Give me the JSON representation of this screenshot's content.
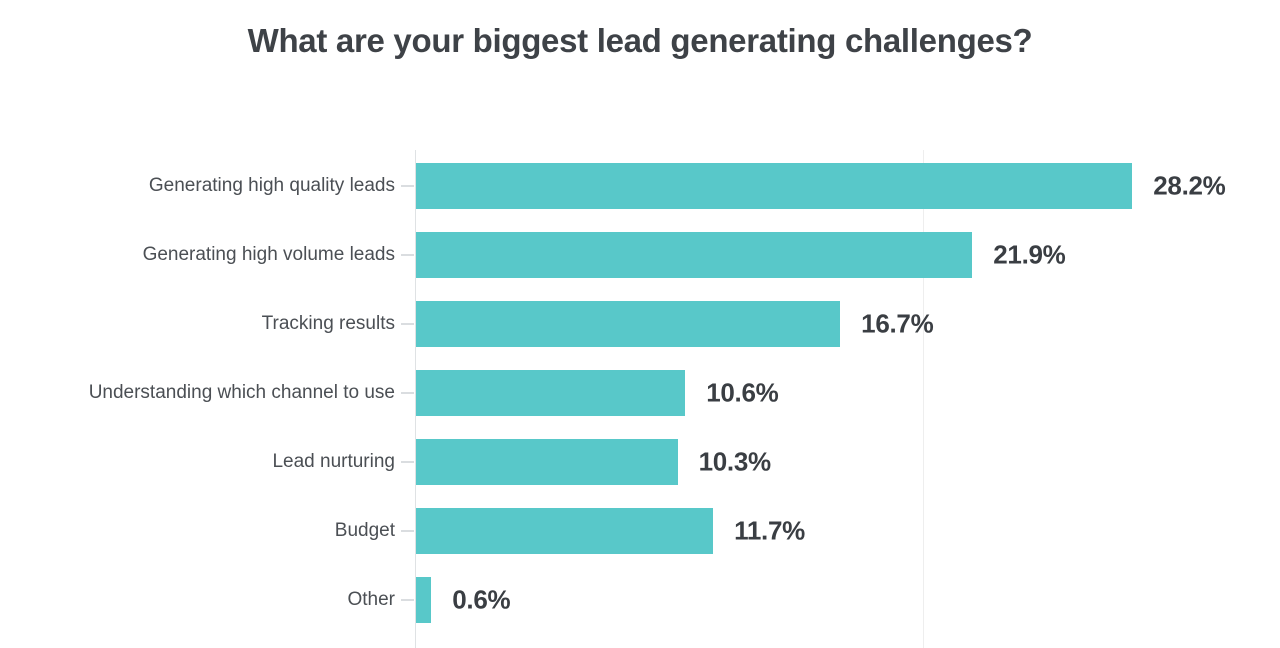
{
  "chart_data": {
    "type": "bar",
    "orientation": "horizontal",
    "title": "What are your biggest lead generating challenges?",
    "categories": [
      "Generating high quality leads",
      "Generating high volume leads",
      "Tracking results",
      "Understanding which channel to use",
      "Lead nurturing",
      "Budget",
      "Other"
    ],
    "values": [
      28.2,
      21.9,
      16.7,
      10.6,
      10.3,
      11.7,
      0.6
    ],
    "value_labels": [
      "28.2%",
      "21.9%",
      "16.7%",
      "10.6%",
      "10.3%",
      "11.7%",
      "0.6%"
    ],
    "xlabel": "",
    "ylabel": "",
    "xlim": [
      0,
      34
    ],
    "gridline_values_pct": [
      0,
      20
    ],
    "grid": "vertical-only",
    "legend": "none",
    "colors": {
      "bar": "#58c8c9",
      "title_text": "#3e4247",
      "category_text": "#4b4f54",
      "value_text": "#3a3e43",
      "axis_line": "#dfe2e4",
      "gridline": "#eeeeee",
      "tick": "#dadde0",
      "background": "#ffffff"
    }
  }
}
